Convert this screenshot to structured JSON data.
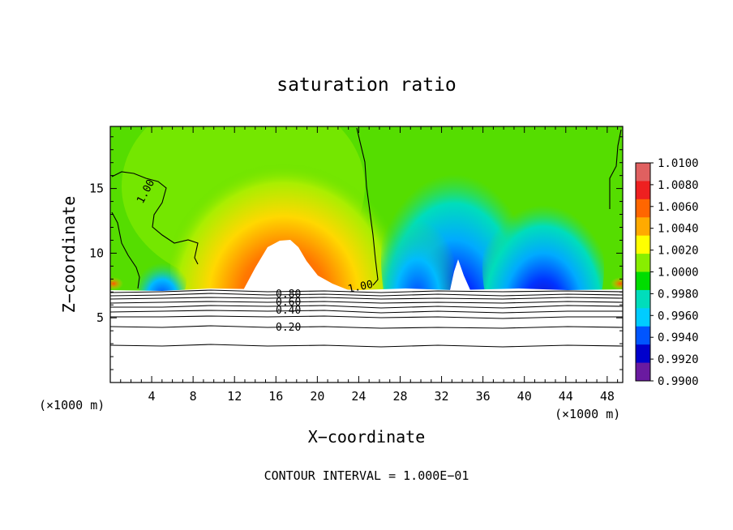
{
  "chart_data": {
    "type": "heatmap",
    "title": "saturation ratio",
    "xlabel": "X−coordinate",
    "ylabel": "Z−coordinate",
    "x_unit_label": "(×1000 m)",
    "y_unit_label": "(×1000 m)",
    "footer": "CONTOUR INTERVAL = 1.000E−01",
    "xlim": [
      0,
      49.5
    ],
    "ylim": [
      0,
      19.8
    ],
    "x_ticks": [
      4,
      8,
      12,
      16,
      20,
      24,
      28,
      32,
      36,
      40,
      44,
      48
    ],
    "y_ticks": [
      5,
      10,
      15
    ],
    "colorbar": {
      "min": 0.99,
      "max": 1.01,
      "labels": [
        "1.0100",
        "1.0080",
        "1.0060",
        "1.0040",
        "1.0020",
        "1.0000",
        "0.9980",
        "0.9960",
        "0.9940",
        "0.9920",
        "0.9900"
      ],
      "colors": [
        "#e06060",
        "#ee2020",
        "#ff6600",
        "#ffaa00",
        "#ffff00",
        "#88ee00",
        "#00dd00",
        "#00ddbb",
        "#00ccff",
        "#0055ff",
        "#0000cc",
        "#6a1aa0"
      ]
    },
    "contour_labels": [
      "1.00",
      "1.00",
      "0.80",
      "0.60",
      "0.40",
      "0.20"
    ],
    "contour_interval": 0.1
  }
}
